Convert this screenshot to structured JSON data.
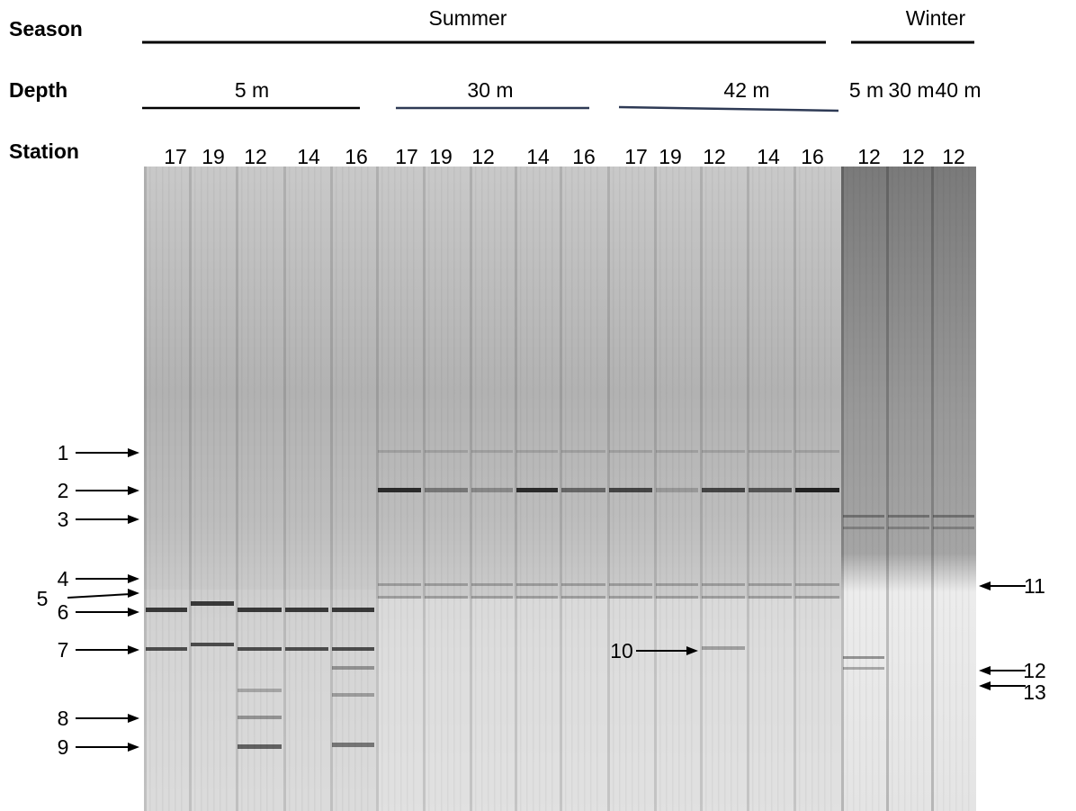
{
  "row_labels": {
    "season": "Season",
    "depth": "Depth",
    "station": "Station"
  },
  "seasons": [
    "Summer",
    "Winter"
  ],
  "depths": [
    "5 m",
    "30 m",
    "42 m",
    "5 m",
    "30 m",
    "40 m"
  ],
  "stations": [
    "17",
    "19",
    "12",
    "14",
    "16",
    "17",
    "19",
    "12",
    "14",
    "16",
    "17",
    "19",
    "12",
    "14",
    "16",
    "12",
    "12",
    "12"
  ],
  "band_labels": [
    "1",
    "2",
    "3",
    "4",
    "5",
    "6",
    "7",
    "8",
    "9",
    "10",
    "11",
    "12",
    "13"
  ]
}
